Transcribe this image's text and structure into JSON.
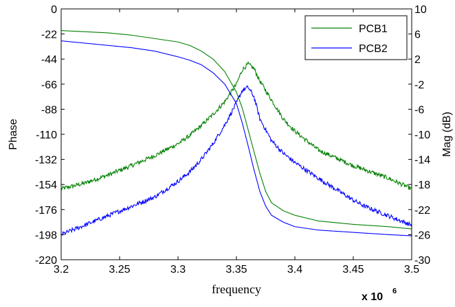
{
  "chart_data": {
    "type": "line",
    "xlabel": "frequency",
    "ylabel_left": "Phase",
    "ylabel_right": "Mag (dB)",
    "x_multiplier": "x 10",
    "x_multiplier_exp": "6",
    "xlim": [
      3.2,
      3.5
    ],
    "ylim_left": [
      -220,
      0
    ],
    "ylim_right": [
      -30,
      10
    ],
    "x_ticks": [
      "3.2",
      "3.25",
      "3.3",
      "3.35",
      "3.4",
      "3.45",
      "3.5"
    ],
    "y_ticks_left": [
      "0",
      "-22",
      "-44",
      "-66",
      "-88",
      "-110",
      "-132",
      "-154",
      "-176",
      "-198",
      "-220"
    ],
    "y_ticks_right": [
      "10",
      "6",
      "2",
      "-2",
      "-6",
      "-10",
      "-14",
      "-18",
      "-22",
      "-26",
      "-30"
    ],
    "legend_position": "top-right",
    "grid": false,
    "series": [
      {
        "name": "PCB1",
        "color": "#008000",
        "phase": [
          [
            3.2,
            -19
          ],
          [
            3.22,
            -20
          ],
          [
            3.24,
            -21
          ],
          [
            3.26,
            -23
          ],
          [
            3.28,
            -26
          ],
          [
            3.3,
            -29
          ],
          [
            3.31,
            -32
          ],
          [
            3.32,
            -37
          ],
          [
            3.33,
            -44
          ],
          [
            3.34,
            -55
          ],
          [
            3.35,
            -73
          ],
          [
            3.355,
            -87
          ],
          [
            3.36,
            -106
          ],
          [
            3.365,
            -125
          ],
          [
            3.37,
            -144
          ],
          [
            3.375,
            -160
          ],
          [
            3.38,
            -170
          ],
          [
            3.39,
            -177
          ],
          [
            3.4,
            -181
          ],
          [
            3.42,
            -186
          ],
          [
            3.45,
            -189
          ],
          [
            3.48,
            -191
          ],
          [
            3.5,
            -193
          ]
        ],
        "magnitude_db": [
          [
            3.2,
            -18.7
          ],
          [
            3.22,
            -17.8
          ],
          [
            3.24,
            -16.5
          ],
          [
            3.26,
            -15.0
          ],
          [
            3.28,
            -13.4
          ],
          [
            3.3,
            -11.5
          ],
          [
            3.31,
            -10.2
          ],
          [
            3.32,
            -8.6
          ],
          [
            3.33,
            -6.8
          ],
          [
            3.34,
            -4.8
          ],
          [
            3.35,
            -2.0
          ],
          [
            3.355,
            0.3
          ],
          [
            3.36,
            1.2
          ],
          [
            3.365,
            0.5
          ],
          [
            3.37,
            -1.5
          ],
          [
            3.38,
            -4.5
          ],
          [
            3.39,
            -7.5
          ],
          [
            3.4,
            -9.5
          ],
          [
            3.42,
            -12.5
          ],
          [
            3.45,
            -15.0
          ],
          [
            3.48,
            -17.0
          ],
          [
            3.5,
            -18.7
          ]
        ]
      },
      {
        "name": "PCB2",
        "color": "#0000ff",
        "phase": [
          [
            3.2,
            -28
          ],
          [
            3.22,
            -30
          ],
          [
            3.24,
            -32
          ],
          [
            3.26,
            -34
          ],
          [
            3.28,
            -37
          ],
          [
            3.3,
            -42
          ],
          [
            3.31,
            -45
          ],
          [
            3.32,
            -49
          ],
          [
            3.33,
            -56
          ],
          [
            3.34,
            -66
          ],
          [
            3.35,
            -83
          ],
          [
            3.355,
            -100
          ],
          [
            3.36,
            -120
          ],
          [
            3.365,
            -141
          ],
          [
            3.37,
            -160
          ],
          [
            3.375,
            -173
          ],
          [
            3.38,
            -181
          ],
          [
            3.39,
            -187
          ],
          [
            3.4,
            -191
          ],
          [
            3.42,
            -194
          ],
          [
            3.45,
            -196
          ],
          [
            3.48,
            -198
          ],
          [
            3.5,
            -199
          ]
        ],
        "magnitude_db": [
          [
            3.2,
            -26.0
          ],
          [
            3.22,
            -24.5
          ],
          [
            3.24,
            -23.0
          ],
          [
            3.26,
            -21.5
          ],
          [
            3.28,
            -20.0
          ],
          [
            3.3,
            -17.5
          ],
          [
            3.31,
            -16.0
          ],
          [
            3.32,
            -14.0
          ],
          [
            3.33,
            -11.5
          ],
          [
            3.34,
            -8.5
          ],
          [
            3.35,
            -5.0
          ],
          [
            3.355,
            -3.0
          ],
          [
            3.36,
            -2.5
          ],
          [
            3.365,
            -4.0
          ],
          [
            3.37,
            -7.5
          ],
          [
            3.38,
            -11.0
          ],
          [
            3.39,
            -13.0
          ],
          [
            3.4,
            -14.5
          ],
          [
            3.42,
            -17.0
          ],
          [
            3.45,
            -20.5
          ],
          [
            3.46,
            -21.5
          ],
          [
            3.48,
            -23.0
          ],
          [
            3.5,
            -24.5
          ]
        ]
      }
    ]
  }
}
